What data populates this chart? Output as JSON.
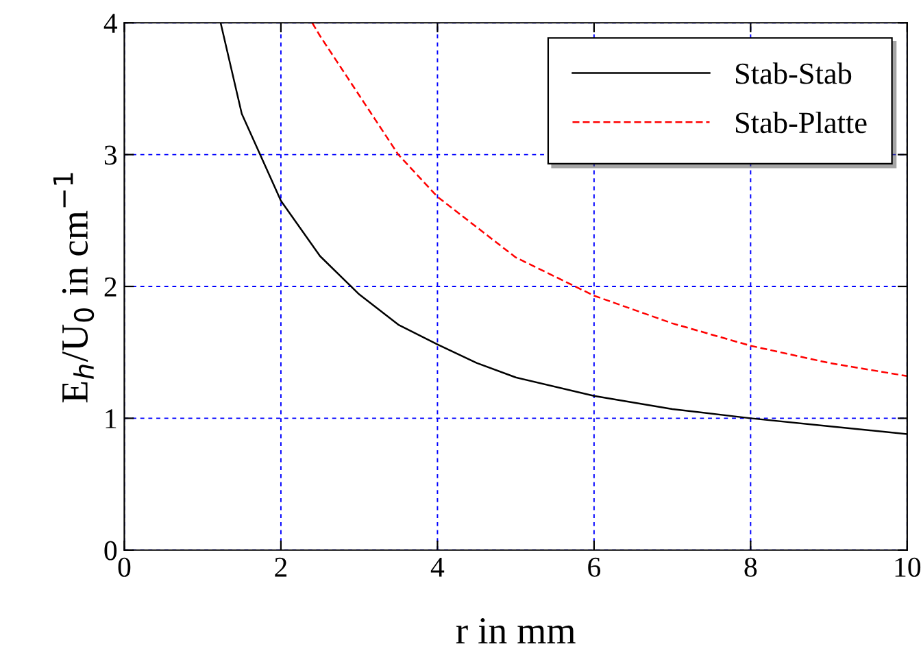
{
  "chart_data": {
    "type": "line",
    "xlabel": "r in mm",
    "ylabel": "E$_{h}$/U$_{0}$ in cm$^{−1}$",
    "xlim": [
      0,
      10
    ],
    "ylim": [
      0,
      4
    ],
    "xticks": [
      0,
      2,
      4,
      6,
      8,
      10
    ],
    "yticks": [
      0,
      1,
      2,
      3,
      4
    ],
    "grid": true,
    "legend": "top right",
    "marker": "none",
    "series": [
      {
        "name": "Stab-Stab",
        "color": "#000000",
        "line_style": "solid",
        "x": [
          1.23,
          1.5,
          2,
          2.5,
          3,
          3.5,
          4,
          4.5,
          5,
          6,
          7,
          8,
          9,
          10
        ],
        "values": [
          4.0,
          3.31,
          2.65,
          2.23,
          1.94,
          1.71,
          1.56,
          1.42,
          1.31,
          1.17,
          1.07,
          1.0,
          0.94,
          0.88
        ]
      },
      {
        "name": "Stab-Platte",
        "color": "#ff0000",
        "line_style": "dashed",
        "x": [
          2.4,
          2.5,
          3,
          3.5,
          4,
          5,
          6,
          7,
          8,
          9,
          10
        ],
        "values": [
          4.0,
          3.9,
          3.45,
          3.0,
          2.68,
          2.22,
          1.93,
          1.72,
          1.55,
          1.42,
          1.32
        ]
      }
    ]
  }
}
